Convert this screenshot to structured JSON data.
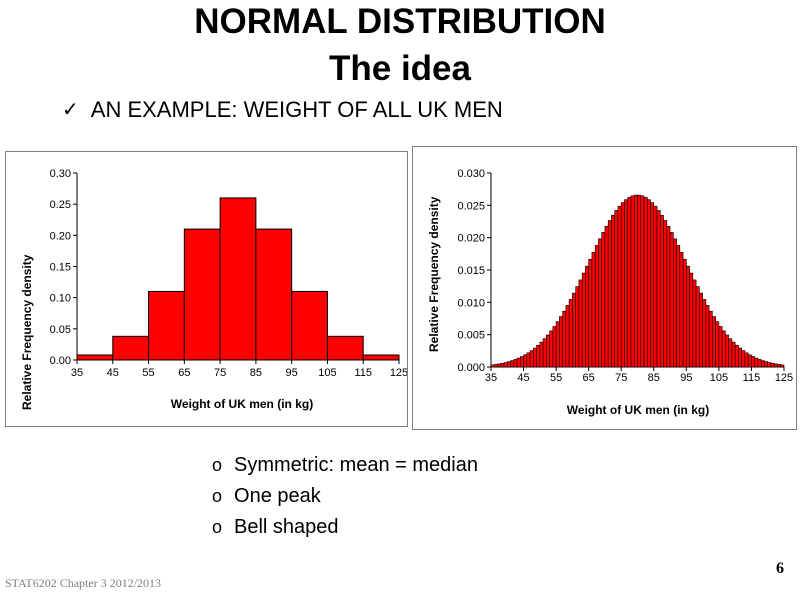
{
  "slide": {
    "title_line1": "NORMAL DISTRIBUTION",
    "title_line2": "The idea",
    "example_label": "AN EXAMPLE: WEIGHT OF ALL UK MEN",
    "check_icon": "check-icon",
    "bullets": [
      "Symmetric: mean = median",
      "One peak",
      "Bell shaped"
    ],
    "bullet_marker": "o",
    "footer": "STAT6202 Chapter 3 2012/2013",
    "page_number": "6",
    "bar_color": "#ff0000"
  },
  "chart_data": [
    {
      "type": "bar",
      "title": "",
      "xlabel": "Weight of UK men (in kg)",
      "ylabel": "Relative Frequency density",
      "bin_edges": [
        35,
        45,
        55,
        65,
        75,
        85,
        95,
        105,
        115,
        125
      ],
      "values": [
        0.008,
        0.038,
        0.11,
        0.21,
        0.26,
        0.21,
        0.11,
        0.038,
        0.008
      ],
      "xticks": [
        "35",
        "45",
        "55",
        "65",
        "75",
        "85",
        "95",
        "105",
        "115",
        "125"
      ],
      "yticks": [
        "0.00",
        "0.05",
        "0.10",
        "0.15",
        "0.20",
        "0.25",
        "0.30"
      ],
      "ylim": [
        0,
        0.3
      ],
      "xlim": [
        35,
        125
      ],
      "grid": false
    },
    {
      "type": "bar",
      "title": "",
      "xlabel": "Weight of UK men (in kg)",
      "ylabel": "Relative Frequency density",
      "distribution": {
        "mean": 80,
        "sd": 15,
        "bin_width": 1
      },
      "xticks": [
        "35",
        "45",
        "55",
        "65",
        "75",
        "85",
        "95",
        "105",
        "115",
        "125"
      ],
      "yticks": [
        "0.000",
        "0.005",
        "0.010",
        "0.015",
        "0.020",
        "0.025",
        "0.030"
      ],
      "ylim": [
        0,
        0.03
      ],
      "xlim": [
        35,
        125
      ],
      "grid": false
    }
  ]
}
